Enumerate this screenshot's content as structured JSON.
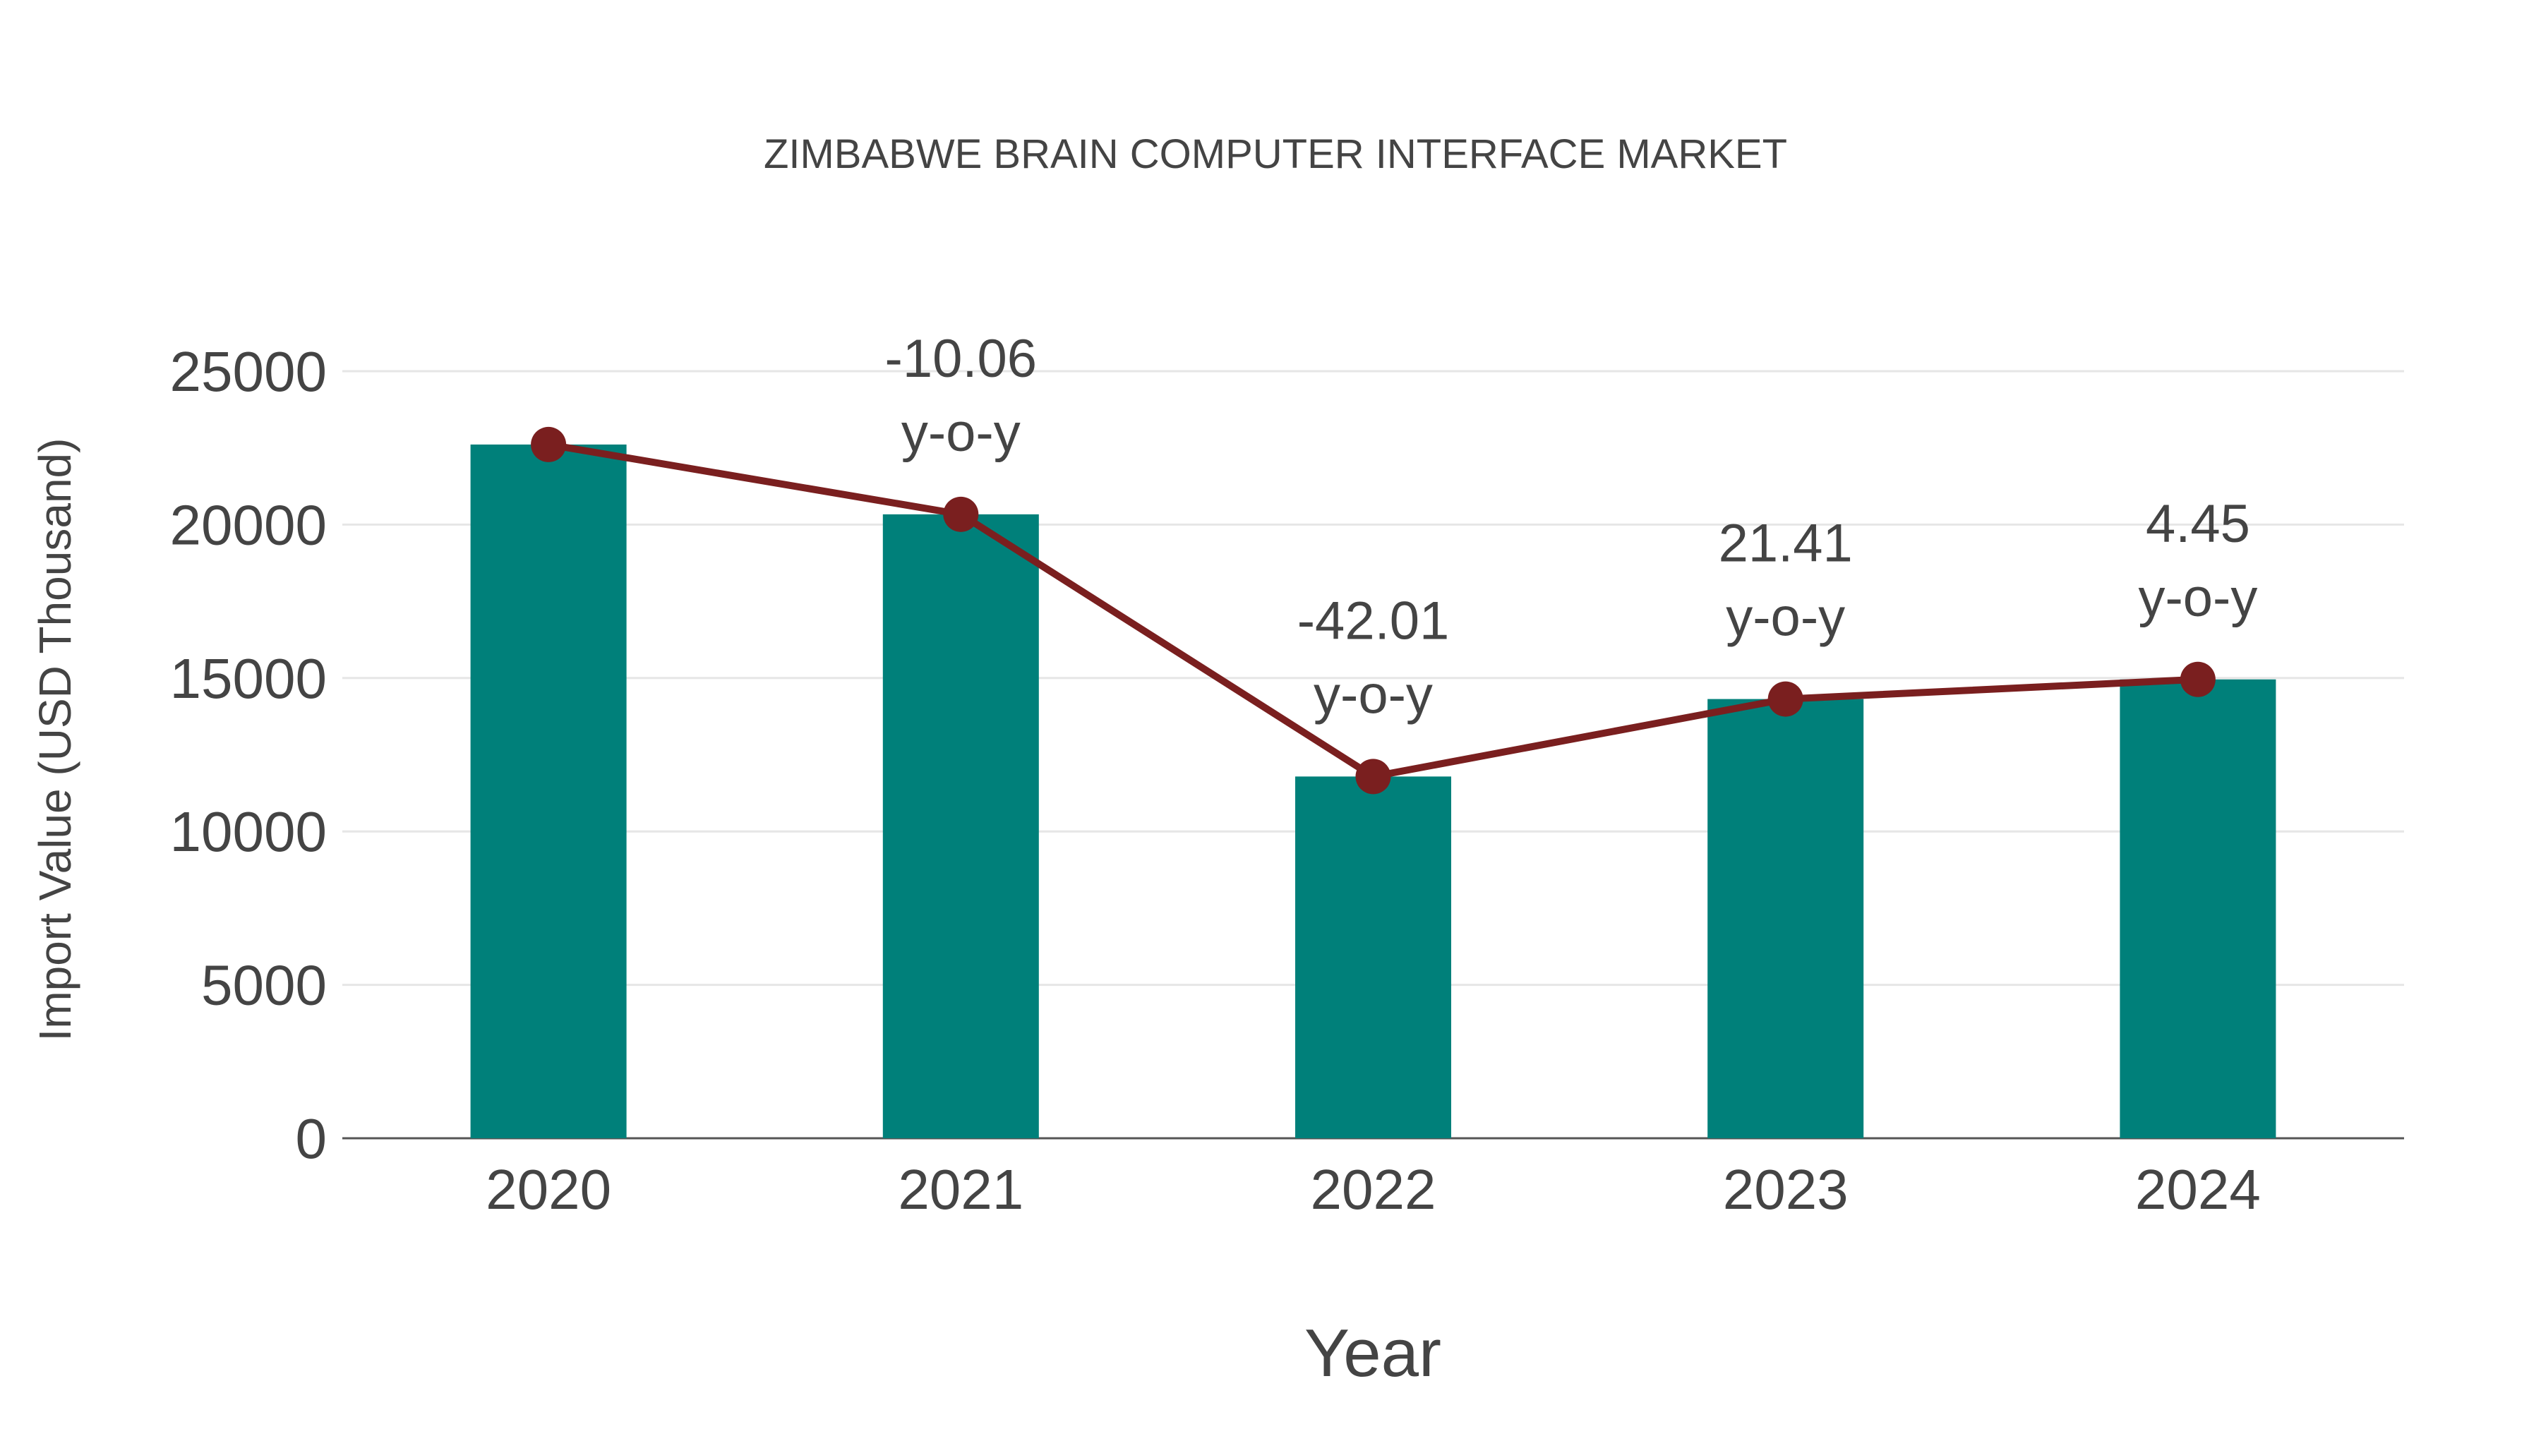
{
  "chart_data": {
    "type": "bar+line",
    "title": "ZIMBABWE BRAIN COMPUTER INTERFACE MARKET",
    "xlabel": "Year",
    "ylabel": "Import Value (USD Thousand)",
    "categories": [
      "2020",
      "2021",
      "2022",
      "2023",
      "2024"
    ],
    "values": [
      22610,
      20335,
      11790,
      14315,
      14955
    ],
    "ylim": [
      0,
      25000
    ],
    "yticks": [
      "0",
      "5000",
      "10000",
      "15000",
      "20000",
      "25000"
    ],
    "yticks_values": [
      0,
      5000,
      10000,
      15000,
      20000,
      25000
    ],
    "grid": true,
    "annotations": [
      {
        "index": 1,
        "value": "-10.06",
        "suffix": "y-o-y"
      },
      {
        "index": 2,
        "value": "-42.01",
        "suffix": "y-o-y"
      },
      {
        "index": 3,
        "value": "21.41",
        "suffix": "y-o-y"
      },
      {
        "index": 4,
        "value": "4.45",
        "suffix": "y-o-y"
      }
    ],
    "colors": {
      "bar": "#00807a",
      "line": "#7a1f1f",
      "grid": "#e6e6e6",
      "axis": "#555555"
    }
  }
}
